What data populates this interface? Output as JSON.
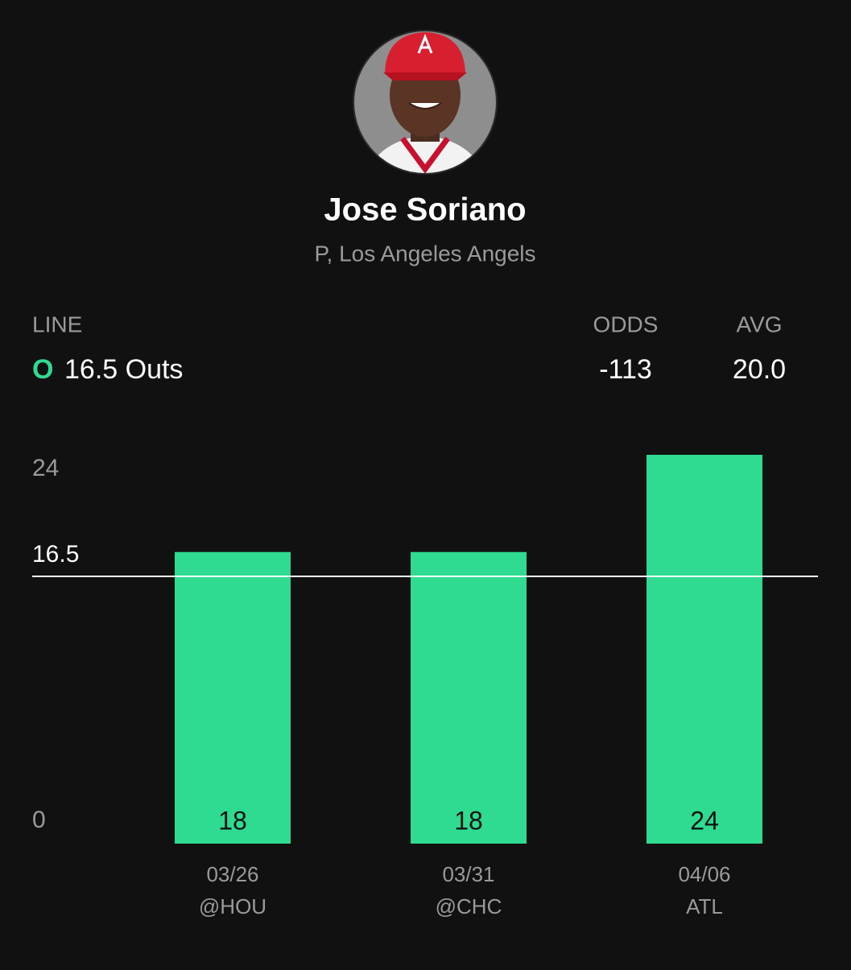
{
  "player": {
    "name": "Jose Soriano",
    "position": "P, Los Angeles Angels"
  },
  "line": {
    "label": "LINE",
    "side": "O",
    "value": "16.5 Outs"
  },
  "odds": {
    "label": "ODDS",
    "value": "-113"
  },
  "avg": {
    "label": "AVG",
    "value": "20.0"
  },
  "chart_data": {
    "type": "bar",
    "categories": [
      "03/26",
      "03/31",
      "04/06"
    ],
    "opponents": [
      "@HOU",
      "@CHC",
      "ATL"
    ],
    "values": [
      18,
      18,
      24
    ],
    "color": "#2edb91",
    "ylim": [
      0,
      24
    ],
    "yticks": [
      0,
      24
    ],
    "line_value": 16.5
  }
}
